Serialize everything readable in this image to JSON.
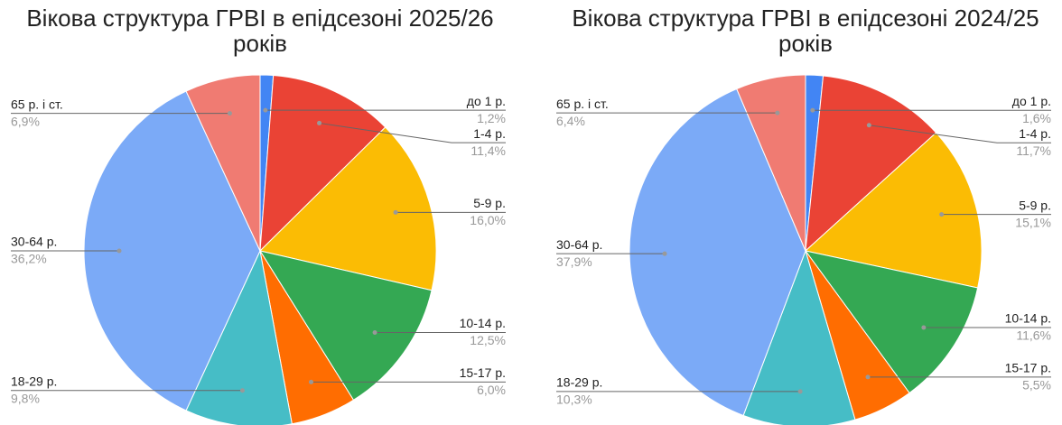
{
  "chart_data": [
    {
      "type": "pie",
      "title": "Вікова структура ГРВІ в епідсезоні 2025/26 років",
      "categories": [
        "до 1 р.",
        "1-4 р.",
        "5-9 р.",
        "10-14 р.",
        "15-17 р.",
        "18-29 р.",
        "30-64 р.",
        "65 р. і ст."
      ],
      "values": [
        1.2,
        11.4,
        16.0,
        12.5,
        6.0,
        9.8,
        36.2,
        6.9
      ],
      "value_labels": [
        "1,2%",
        "11,4%",
        "16,0%",
        "12,5%",
        "6,0%",
        "9,8%",
        "36,2%",
        "6,9%"
      ],
      "colors": [
        "#4285f4",
        "#ea4335",
        "#fbbc04",
        "#34a853",
        "#ff6d01",
        "#46bdc6",
        "#7baaf7",
        "#f07b72"
      ]
    },
    {
      "type": "pie",
      "title": "Вікова структура ГРВІ в епідсезоні 2024/25 років",
      "categories": [
        "до 1 р.",
        "1-4 р.",
        "5-9 р.",
        "10-14 р.",
        "15-17 р.",
        "18-29 р.",
        "30-64 р.",
        "65 р. і ст."
      ],
      "values": [
        1.6,
        11.7,
        15.1,
        11.6,
        5.5,
        10.3,
        37.9,
        6.4
      ],
      "value_labels": [
        "1,6%",
        "11,7%",
        "15,1%",
        "11,6%",
        "5,5%",
        "10,3%",
        "37,9%",
        "6,4%"
      ],
      "colors": [
        "#4285f4",
        "#ea4335",
        "#fbbc04",
        "#34a853",
        "#ff6d01",
        "#46bdc6",
        "#7baaf7",
        "#f07b72"
      ]
    }
  ]
}
